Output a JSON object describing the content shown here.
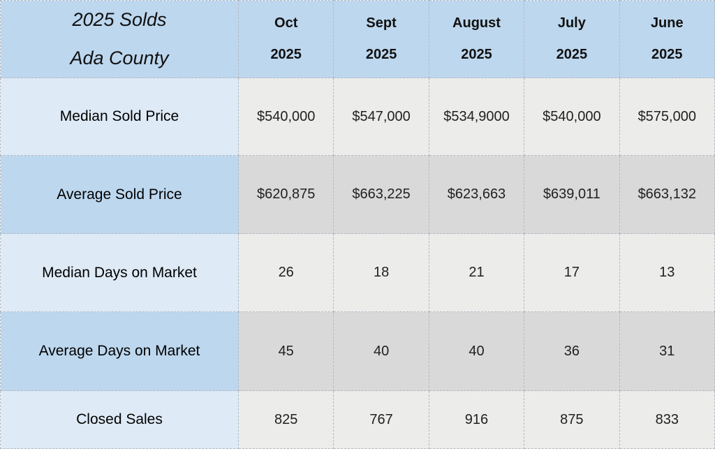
{
  "table": {
    "title_line1": "2025 Solds",
    "title_line2": "Ada County",
    "columns": [
      {
        "month": "Oct",
        "year": "2025"
      },
      {
        "month": "Sept",
        "year": "2025"
      },
      {
        "month": "August",
        "year": "2025"
      },
      {
        "month": "July",
        "year": "2025"
      },
      {
        "month": "June",
        "year": "2025"
      }
    ],
    "rows": [
      {
        "label": "Median Sold Price",
        "values": [
          "$540,000",
          "$547,000",
          "$534,9000",
          "$540,000",
          "$575,000"
        ]
      },
      {
        "label": "Average Sold Price",
        "values": [
          "$620,875",
          "$663,225",
          "$623,663",
          "$639,011",
          "$663,132"
        ]
      },
      {
        "label": "Median Days on Market",
        "values": [
          "26",
          "18",
          "21",
          "17",
          "13"
        ]
      },
      {
        "label": "Average Days on Market",
        "values": [
          "45",
          "40",
          "40",
          "36",
          "31"
        ]
      },
      {
        "label": "Closed Sales",
        "values": [
          "825",
          "767",
          "916",
          "875",
          "833"
        ]
      }
    ]
  },
  "colors": {
    "header_blue": "#BDD7EE",
    "light_blue": "#DEEAF6",
    "dark_gray": "#D9D9D9",
    "light_gray": "#ECECEB",
    "border_dashed": "#B3BAC2",
    "text": "#1A1A1A"
  },
  "chart_data": {
    "type": "table",
    "title": "2025 Solds Ada County",
    "categories": [
      "Oct 2025",
      "Sept 2025",
      "August 2025",
      "July 2025",
      "June 2025"
    ],
    "series": [
      {
        "name": "Median Sold Price",
        "values": [
          "$540,000",
          "$547,000",
          "$534,9000",
          "$540,000",
          "$575,000"
        ]
      },
      {
        "name": "Average Sold Price",
        "values": [
          "$620,875",
          "$663,225",
          "$623,663",
          "$639,011",
          "$663,132"
        ]
      },
      {
        "name": "Median Days on Market",
        "values": [
          26,
          18,
          21,
          17,
          13
        ]
      },
      {
        "name": "Average Days on Market",
        "values": [
          45,
          40,
          40,
          36,
          31
        ]
      },
      {
        "name": "Closed Sales",
        "values": [
          825,
          767,
          916,
          875,
          833
        ]
      }
    ],
    "layout": {
      "row_banding": true,
      "grid": "dashed"
    }
  }
}
